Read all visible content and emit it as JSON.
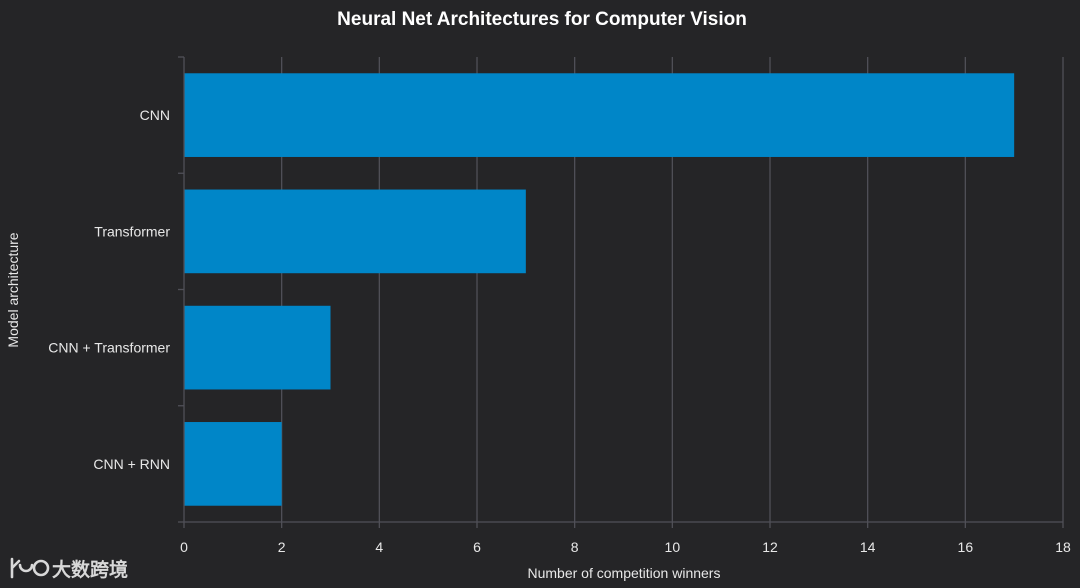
{
  "chart_data": {
    "type": "bar",
    "orientation": "horizontal",
    "title": "Neural Net Architectures for Computer Vision",
    "xlabel": "Number of competition winners",
    "ylabel": "Model architecture",
    "categories": [
      "CNN",
      "Transformer",
      "CNN + Transformer",
      "CNN + RNN"
    ],
    "values": [
      17,
      7,
      3,
      2
    ],
    "xlim": [
      0,
      18
    ],
    "xticks": [
      0,
      2,
      4,
      6,
      8,
      10,
      12,
      14,
      16,
      18
    ],
    "grid": "vertical",
    "bar_color": "#0086c8",
    "background_color": "#252527",
    "grid_color": "#505058"
  },
  "watermark": {
    "text": "大数跨境"
  }
}
